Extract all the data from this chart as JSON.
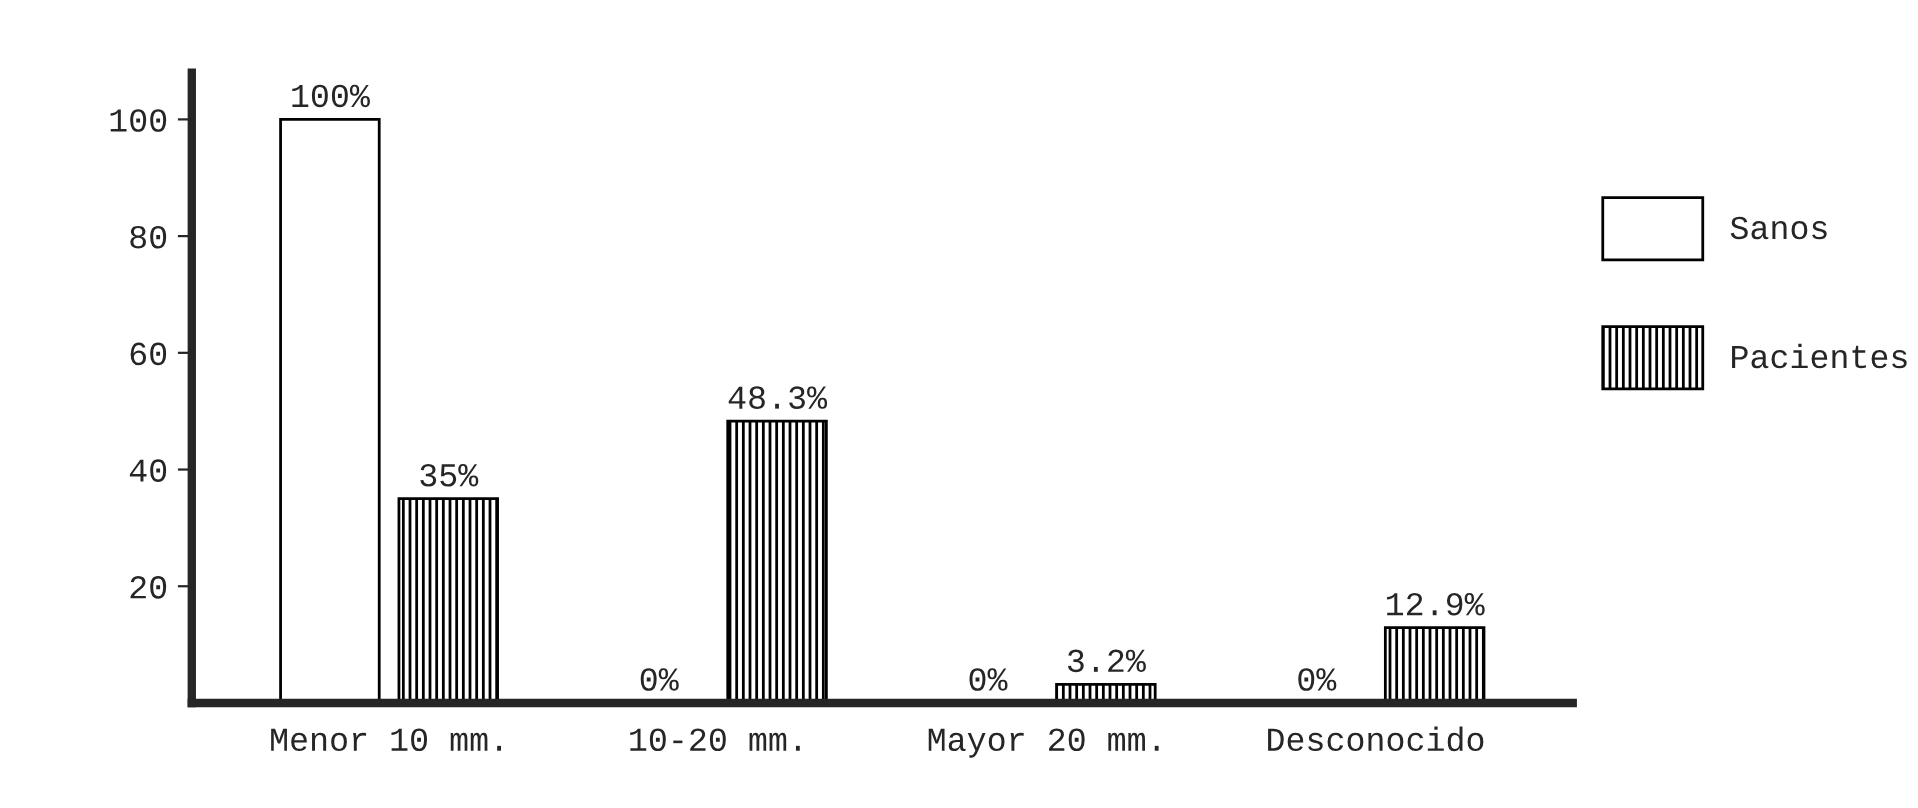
{
  "chart_data": {
    "type": "bar",
    "categories": [
      "Menor 10 mm.",
      "10-20 mm.",
      "Mayor 20 mm.",
      "Desconocido"
    ],
    "series": [
      {
        "name": "Sanos",
        "color": "#000000",
        "values": [
          100,
          0,
          0,
          0
        ],
        "value_labels": [
          "100%",
          "0%",
          "0%",
          "0%"
        ]
      },
      {
        "name": "Pacientes",
        "color": "#000000",
        "values": [
          35,
          48.3,
          3.2,
          12.9
        ],
        "value_labels": [
          "35%",
          "48.3%",
          "3.2%",
          "12.9%"
        ]
      }
    ],
    "ylim": [
      0,
      108
    ],
    "yticks": [
      20,
      40,
      60,
      80,
      100
    ],
    "grid": false,
    "legend": "right"
  }
}
